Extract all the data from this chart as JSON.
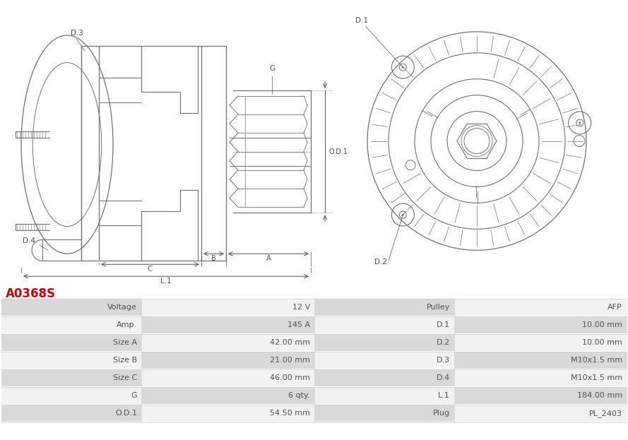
{
  "title": "A0368S",
  "title_color": "#cc0000",
  "table_headers_left": [
    "Voltage",
    "Amp.",
    "Size A",
    "Size B",
    "Size C",
    "G",
    "O.D.1"
  ],
  "table_values_left": [
    "12 V",
    "145 A",
    "42.00 mm",
    "21.00 mm",
    "46.00 mm",
    "6 qty.",
    "54.50 mm"
  ],
  "table_headers_right": [
    "Pulley",
    "D.1",
    "D.2",
    "D.3",
    "D.4",
    "L.1",
    "Plug"
  ],
  "table_values_right": [
    "AFP",
    "10.00 mm",
    "10.00 mm",
    "M10x1.5 mm",
    "M10x1.5 mm",
    "184.00 mm",
    "PL_2403"
  ],
  "bg_color": "#ffffff",
  "table_header_bg": "#d9d9d9",
  "table_row_bg_alt": "#f2f2f2",
  "table_row_bg": "#e8e8e8",
  "text_color": "#505050",
  "line_color": "#707070",
  "dim_color": "#505050"
}
